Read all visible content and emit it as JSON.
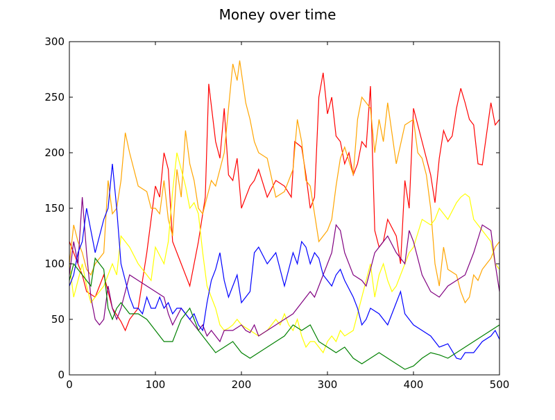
{
  "chart_data": {
    "type": "line",
    "title": "Money over time",
    "xlabel": "",
    "ylabel": "",
    "xlim": [
      0,
      500
    ],
    "ylim": [
      0,
      300
    ],
    "xticks": [
      0,
      100,
      200,
      300,
      400,
      500
    ],
    "yticks": [
      0,
      50,
      100,
      150,
      200,
      250,
      300
    ],
    "grid": false,
    "legend": "none",
    "series": [
      {
        "color": "#ff0000",
        "x": [
          0,
          10,
          15,
          20,
          30,
          40,
          50,
          60,
          65,
          70,
          80,
          90,
          95,
          100,
          105,
          110,
          115,
          120,
          130,
          140,
          150,
          158,
          162,
          170,
          175,
          180,
          185,
          190,
          195,
          200,
          205,
          210,
          215,
          220,
          230,
          240,
          250,
          258,
          262,
          270,
          275,
          280,
          285,
          290,
          295,
          300,
          305,
          310,
          315,
          320,
          325,
          330,
          335,
          340,
          345,
          350,
          355,
          360,
          365,
          370,
          380,
          385,
          390,
          395,
          400,
          410,
          420,
          425,
          430,
          435,
          440,
          445,
          450,
          455,
          460,
          465,
          470,
          475,
          480,
          490,
          495,
          500
        ],
        "y": [
          120,
          100,
          90,
          75,
          70,
          90,
          60,
          48,
          40,
          50,
          60,
          110,
          140,
          170,
          160,
          200,
          185,
          120,
          100,
          80,
          120,
          160,
          262,
          210,
          195,
          240,
          180,
          175,
          195,
          150,
          160,
          170,
          175,
          185,
          160,
          175,
          170,
          160,
          210,
          205,
          180,
          150,
          160,
          250,
          272,
          235,
          250,
          215,
          210,
          190,
          200,
          180,
          190,
          210,
          205,
          260,
          130,
          115,
          120,
          140,
          125,
          100,
          175,
          150,
          240,
          210,
          180,
          155,
          195,
          220,
          210,
          215,
          240,
          258,
          245,
          230,
          225,
          190,
          189,
          245,
          225,
          230
        ]
      },
      {
        "color": "#ffa500",
        "x": [
          0,
          5,
          10,
          15,
          20,
          25,
          30,
          40,
          45,
          50,
          55,
          60,
          65,
          70,
          75,
          80,
          90,
          95,
          100,
          105,
          110,
          115,
          120,
          125,
          130,
          135,
          140,
          145,
          150,
          155,
          160,
          165,
          170,
          175,
          180,
          185,
          190,
          195,
          198,
          205,
          210,
          215,
          220,
          230,
          240,
          250,
          255,
          260,
          265,
          270,
          275,
          280,
          285,
          290,
          295,
          300,
          305,
          310,
          315,
          320,
          330,
          335,
          340,
          345,
          350,
          355,
          360,
          365,
          370,
          380,
          390,
          400,
          405,
          410,
          415,
          420,
          425,
          430,
          435,
          440,
          450,
          455,
          460,
          465,
          470,
          475,
          480,
          485,
          490,
          495,
          500
        ],
        "y": [
          100,
          135,
          120,
          110,
          95,
          90,
          100,
          110,
          175,
          145,
          150,
          175,
          218,
          200,
          185,
          170,
          165,
          150,
          150,
          145,
          175,
          140,
          125,
          185,
          160,
          220,
          190,
          175,
          150,
          145,
          160,
          175,
          170,
          185,
          200,
          240,
          280,
          265,
          283,
          245,
          230,
          210,
          200,
          195,
          160,
          165,
          175,
          185,
          230,
          210,
          175,
          170,
          145,
          120,
          125,
          130,
          140,
          170,
          195,
          205,
          180,
          230,
          250,
          245,
          240,
          200,
          230,
          210,
          245,
          190,
          225,
          230,
          200,
          195,
          180,
          150,
          100,
          80,
          115,
          95,
          90,
          75,
          65,
          70,
          90,
          85,
          95,
          100,
          105,
          115,
          120
        ]
      },
      {
        "color": "#ffff00",
        "x": [
          0,
          5,
          10,
          15,
          20,
          25,
          30,
          40,
          50,
          55,
          60,
          65,
          70,
          80,
          90,
          95,
          100,
          110,
          115,
          120,
          125,
          130,
          135,
          140,
          145,
          150,
          155,
          160,
          165,
          170,
          175,
          180,
          185,
          190,
          195,
          200,
          210,
          220,
          230,
          240,
          245,
          250,
          255,
          260,
          265,
          270,
          275,
          280,
          285,
          290,
          295,
          300,
          305,
          310,
          315,
          320,
          330,
          335,
          340,
          345,
          350,
          355,
          360,
          365,
          370,
          375,
          380,
          390,
          395,
          400,
          410,
          420,
          425,
          430,
          440,
          450,
          455,
          460,
          465,
          470,
          480,
          490,
          495,
          500
        ],
        "y": [
          100,
          70,
          85,
          100,
          80,
          65,
          70,
          80,
          100,
          90,
          125,
          120,
          115,
          100,
          90,
          85,
          115,
          100,
          120,
          165,
          200,
          185,
          170,
          150,
          155,
          145,
          110,
          80,
          70,
          60,
          45,
          40,
          42,
          45,
          50,
          45,
          40,
          35,
          40,
          50,
          45,
          55,
          45,
          40,
          50,
          35,
          25,
          30,
          30,
          25,
          20,
          30,
          35,
          30,
          40,
          35,
          40,
          55,
          70,
          85,
          100,
          70,
          90,
          100,
          85,
          75,
          80,
          100,
          110,
          115,
          140,
          135,
          140,
          150,
          140,
          155,
          160,
          163,
          160,
          140,
          130,
          120,
          100,
          95
        ]
      },
      {
        "color": "#800080",
        "x": [
          0,
          5,
          10,
          15,
          20,
          25,
          30,
          35,
          40,
          45,
          50,
          55,
          60,
          70,
          80,
          90,
          100,
          110,
          115,
          120,
          130,
          140,
          150,
          155,
          160,
          165,
          170,
          175,
          180,
          190,
          200,
          205,
          210,
          215,
          220,
          230,
          240,
          250,
          260,
          270,
          280,
          285,
          290,
          295,
          300,
          305,
          310,
          315,
          320,
          330,
          340,
          345,
          350,
          355,
          360,
          365,
          370,
          380,
          390,
          395,
          400,
          410,
          420,
          430,
          440,
          450,
          460,
          470,
          480,
          490,
          495,
          500
        ],
        "y": [
          90,
          120,
          100,
          160,
          110,
          70,
          50,
          45,
          50,
          80,
          60,
          50,
          60,
          90,
          85,
          80,
          75,
          70,
          55,
          45,
          60,
          50,
          40,
          45,
          35,
          40,
          35,
          30,
          40,
          40,
          45,
          40,
          38,
          45,
          35,
          40,
          45,
          50,
          55,
          65,
          75,
          70,
          80,
          90,
          100,
          110,
          135,
          130,
          110,
          90,
          85,
          80,
          95,
          110,
          115,
          120,
          125,
          110,
          100,
          130,
          120,
          90,
          75,
          70,
          80,
          85,
          90,
          110,
          135,
          130,
          100,
          75
        ]
      },
      {
        "color": "#0000ff",
        "x": [
          0,
          5,
          10,
          15,
          20,
          25,
          30,
          35,
          40,
          45,
          50,
          55,
          60,
          65,
          70,
          75,
          80,
          85,
          90,
          95,
          100,
          105,
          110,
          115,
          120,
          125,
          130,
          135,
          140,
          145,
          150,
          155,
          160,
          165,
          170,
          175,
          180,
          185,
          190,
          195,
          200,
          210,
          215,
          220,
          230,
          240,
          250,
          255,
          260,
          265,
          270,
          275,
          280,
          285,
          290,
          295,
          300,
          305,
          310,
          315,
          320,
          330,
          335,
          340,
          345,
          350,
          360,
          370,
          380,
          385,
          390,
          395,
          400,
          410,
          420,
          425,
          430,
          440,
          450,
          455,
          460,
          470,
          480,
          490,
          495,
          500
        ],
        "y": [
          80,
          90,
          110,
          120,
          150,
          130,
          110,
          125,
          140,
          150,
          190,
          150,
          100,
          85,
          70,
          60,
          60,
          55,
          70,
          60,
          60,
          70,
          60,
          65,
          55,
          60,
          60,
          55,
          50,
          55,
          45,
          40,
          65,
          85,
          95,
          110,
          85,
          70,
          80,
          90,
          65,
          75,
          110,
          115,
          100,
          110,
          80,
          95,
          110,
          100,
          120,
          115,
          100,
          110,
          105,
          90,
          85,
          80,
          90,
          95,
          85,
          70,
          60,
          45,
          50,
          60,
          55,
          45,
          65,
          75,
          55,
          50,
          45,
          40,
          35,
          30,
          25,
          28,
          15,
          14,
          20,
          20,
          30,
          35,
          40,
          32
        ]
      },
      {
        "color": "#008000",
        "x": [
          0,
          5,
          10,
          15,
          20,
          25,
          30,
          35,
          40,
          45,
          50,
          55,
          60,
          65,
          70,
          80,
          90,
          100,
          110,
          120,
          130,
          140,
          150,
          160,
          170,
          180,
          190,
          200,
          210,
          220,
          230,
          240,
          250,
          260,
          270,
          280,
          290,
          300,
          310,
          320,
          330,
          340,
          350,
          360,
          370,
          380,
          390,
          400,
          410,
          420,
          430,
          440,
          450,
          460,
          470,
          480,
          490,
          500
        ],
        "y": [
          85,
          100,
          95,
          90,
          85,
          80,
          105,
          100,
          95,
          60,
          50,
          60,
          65,
          60,
          55,
          55,
          50,
          40,
          30,
          30,
          50,
          60,
          40,
          30,
          20,
          25,
          30,
          20,
          15,
          20,
          25,
          30,
          35,
          45,
          40,
          45,
          30,
          25,
          20,
          25,
          15,
          10,
          15,
          20,
          15,
          10,
          5,
          8,
          15,
          20,
          18,
          15,
          20,
          25,
          30,
          35,
          40,
          45
        ]
      }
    ]
  }
}
